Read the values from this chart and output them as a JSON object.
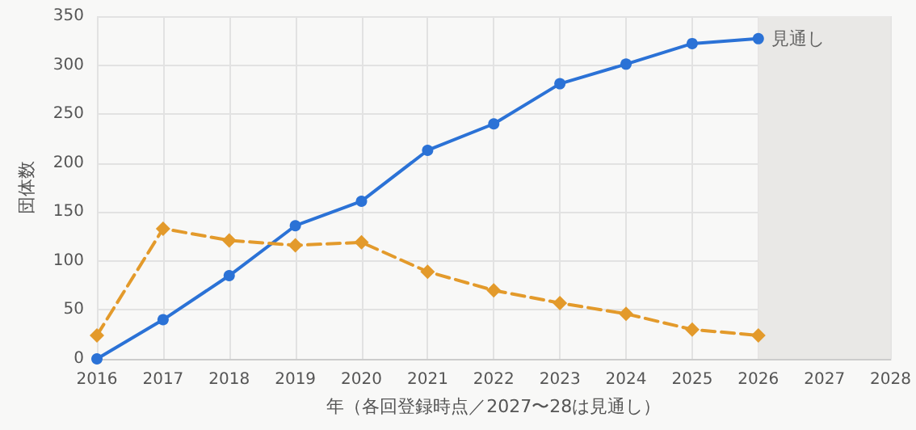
{
  "chart_data": {
    "type": "line",
    "xlabel": "年（各回登録時点／2027〜28は見通し）",
    "ylabel": "団体数",
    "x": [
      2016,
      2017,
      2018,
      2019,
      2020,
      2021,
      2022,
      2023,
      2024,
      2025,
      2026
    ],
    "series": [
      {
        "color": "#2b72d6",
        "values": [
          0,
          40,
          85,
          136,
          161,
          213,
          240,
          281,
          301,
          322,
          327
        ],
        "marker": "circle",
        "line_style": "solid"
      },
      {
        "color": "#e39a2b",
        "values": [
          24,
          133,
          121,
          116,
          119,
          89,
          70,
          57,
          46,
          30,
          24
        ],
        "marker": "diamond",
        "line_style": "dashed"
      }
    ],
    "xlim": [
      2016,
      2028
    ],
    "xticks": [
      2016,
      2017,
      2018,
      2019,
      2020,
      2021,
      2022,
      2023,
      2024,
      2025,
      2026,
      2027,
      2028
    ],
    "ylim": [
      0,
      350
    ],
    "yticks": [
      0,
      50,
      100,
      150,
      200,
      250,
      300,
      350
    ],
    "grid": true,
    "bands": [
      {
        "axis": "x",
        "from": 2026,
        "to": 2028,
        "color": "#e9e8e6"
      }
    ],
    "annotations": [
      {
        "text": "見通し",
        "x": 2026,
        "y": 327
      }
    ]
  }
}
